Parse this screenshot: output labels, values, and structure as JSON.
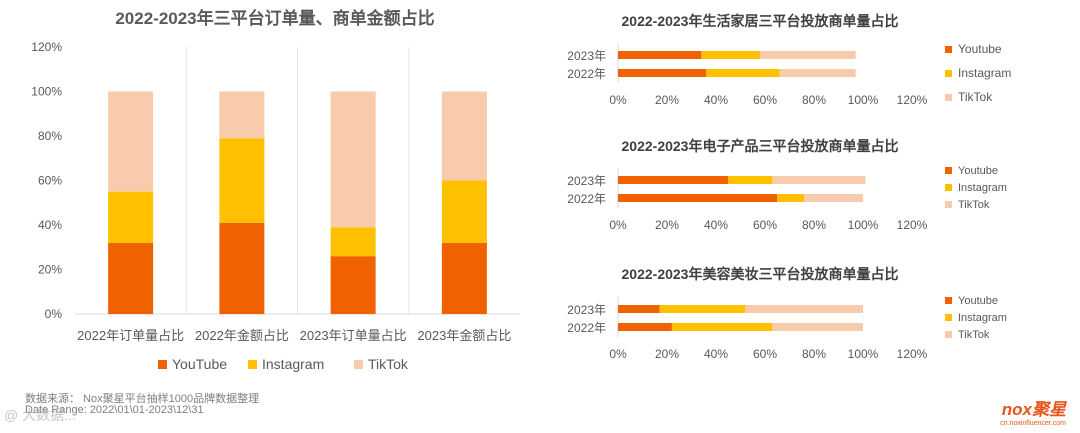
{
  "colors": {
    "youtube": "#f06100",
    "instagram": "#ffc000",
    "tiktok": "#f8cbad"
  },
  "chart_data": [
    {
      "type": "bar",
      "stacked": true,
      "title": "2022-2023年三平台订单量、商单金额占比",
      "categories": [
        "2022年订单量占比",
        "2022年金额占比",
        "2023年订单量占比",
        "2023年金额占比"
      ],
      "series": [
        {
          "name": "YouTube",
          "values": [
            32,
            41,
            26,
            32
          ]
        },
        {
          "name": "Instagram",
          "values": [
            23,
            38,
            13,
            28
          ]
        },
        {
          "name": "TikTok",
          "values": [
            45,
            21,
            61,
            40
          ]
        }
      ],
      "ylim": [
        0,
        120
      ],
      "yticks": [
        "0%",
        "20%",
        "40%",
        "60%",
        "80%",
        "100%",
        "120%"
      ],
      "grid": false,
      "legend": "bottom"
    },
    {
      "type": "bar",
      "orientation": "horizontal",
      "stacked": true,
      "title": "2022-2023年生活家居三平台投放商单量占比",
      "categories": [
        "2023年",
        "2022年"
      ],
      "series": [
        {
          "name": "Youtube",
          "values": [
            34,
            36
          ]
        },
        {
          "name": "Instagram",
          "values": [
            24,
            30
          ]
        },
        {
          "name": "TikTok",
          "values": [
            39,
            31
          ]
        }
      ],
      "xlim": [
        0,
        120
      ],
      "xticks": [
        "0%",
        "20%",
        "40%",
        "60%",
        "80%",
        "100%",
        "120%"
      ],
      "legend": "right"
    },
    {
      "type": "bar",
      "orientation": "horizontal",
      "stacked": true,
      "title": "2022-2023年电子产品三平台投放商单量占比",
      "categories": [
        "2023年",
        "2022年"
      ],
      "series": [
        {
          "name": "Youtube",
          "values": [
            45,
            65
          ]
        },
        {
          "name": "Instagram",
          "values": [
            18,
            11
          ]
        },
        {
          "name": "TikTok",
          "values": [
            38,
            24
          ]
        }
      ],
      "xlim": [
        0,
        120
      ],
      "xticks": [
        "0%",
        "20%",
        "40%",
        "60%",
        "80%",
        "100%",
        "120%"
      ],
      "legend": "right"
    },
    {
      "type": "bar",
      "orientation": "horizontal",
      "stacked": true,
      "title": "2022-2023年美容美妆三平台投放商单量占比",
      "categories": [
        "2023年",
        "2022年"
      ],
      "series": [
        {
          "name": "Youtube",
          "values": [
            17,
            22
          ]
        },
        {
          "name": "Instagram",
          "values": [
            35,
            41
          ]
        },
        {
          "name": "TikTok",
          "values": [
            48,
            37
          ]
        }
      ],
      "xlim": [
        0,
        120
      ],
      "xticks": [
        "0%",
        "20%",
        "40%",
        "60%",
        "80%",
        "100%",
        "120%"
      ],
      "legend": "right"
    }
  ],
  "footer": {
    "source": "数据来源： Nox聚星平台抽样1000品牌数据整理",
    "date_range": "Date Range: 2022\\01\\01-2023\\12\\31"
  },
  "brand": {
    "logo": "nox聚星",
    "url": "cn.noxinfluencer.com"
  },
  "watermark": "@ 大数据..."
}
